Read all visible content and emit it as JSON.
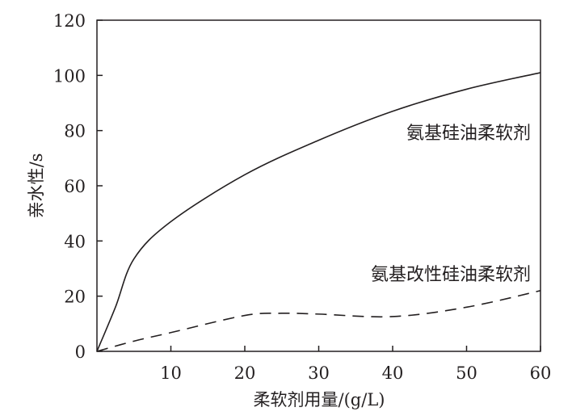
{
  "chart_data": {
    "type": "line",
    "title": "",
    "xlabel": "柔软剂用量/(g/L)",
    "ylabel": "亲水性/s",
    "xlim": [
      0,
      60
    ],
    "ylim": [
      0,
      120
    ],
    "xticks": [
      10,
      20,
      30,
      40,
      50,
      60
    ],
    "yticks": [
      0,
      20,
      40,
      60,
      80,
      100,
      120
    ],
    "grid": false,
    "color": "#231f20",
    "series": [
      {
        "name": "氨基硅油柔软剂",
        "style": "solid",
        "x": [
          0,
          2.5,
          5,
          10,
          20,
          30,
          40,
          50,
          60
        ],
        "y": [
          0,
          16,
          33.5,
          47,
          64,
          76.5,
          87,
          95,
          101
        ]
      },
      {
        "name": "氨基改性硅油柔软剂",
        "style": "dashed",
        "x": [
          0,
          5,
          10,
          20,
          25,
          30,
          40,
          50,
          60
        ],
        "y": [
          0,
          3.7,
          6.8,
          13,
          13.8,
          13.5,
          12.6,
          16,
          22
        ]
      }
    ]
  }
}
